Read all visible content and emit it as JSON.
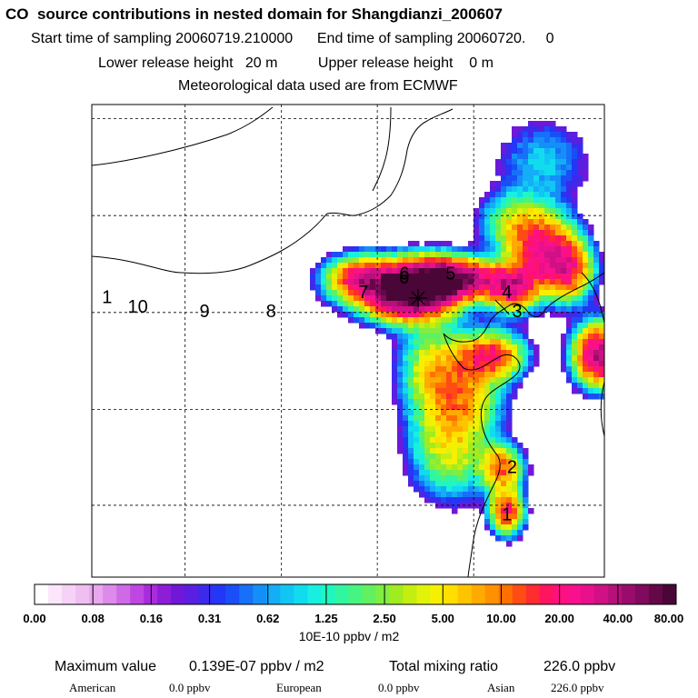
{
  "chart_data": {
    "type": "heatmap",
    "title": "CO  source contributions in nested domain for Shangdianzi_200607",
    "subtitle_lines": [
      {
        "left": "Start time of sampling 20060719.210000",
        "right": "End time of sampling 20060720.     0"
      },
      {
        "left": "Lower release height   20 m",
        "right": "Upper release height    0 m"
      },
      {
        "left": "Meteorological data used are from ECMWF",
        "right": ""
      }
    ],
    "colorbar": {
      "tick_labels": [
        "0.00",
        "0.08",
        "0.16",
        "0.31",
        "0.62",
        "1.25",
        "2.50",
        "5.00",
        "10.00",
        "20.00",
        "40.00",
        "80.00"
      ],
      "units": "10E-10 ppbv / m2",
      "colors": [
        "#ffffff",
        "#fbe6fb",
        "#f6d2f6",
        "#f0bff2",
        "#e9a7ee",
        "#dd8aea",
        "#cf6ae6",
        "#bf46e2",
        "#a92bdc",
        "#8e1dd8",
        "#7018d8",
        "#5a1fe0",
        "#3c2aec",
        "#2436f6",
        "#1a4ff8",
        "#1770f8",
        "#158ff8",
        "#14aef6",
        "#12c6f4",
        "#10dcee",
        "#18efe0",
        "#20f6c0",
        "#30f6a0",
        "#48f480",
        "#60f060",
        "#80ee40",
        "#a0ec20",
        "#c4ee10",
        "#e2f208",
        "#f6f000",
        "#ffde00",
        "#ffc400",
        "#ffaa00",
        "#ff9000",
        "#ff7000",
        "#ff4c14",
        "#ff2c30",
        "#ff1460",
        "#ff1080",
        "#f8108c",
        "#e8108c",
        "#d01084",
        "#b6107a",
        "#9a0c6c",
        "#800a5c",
        "#640848",
        "#4a0636"
      ]
    },
    "receptor_label": "6",
    "contour_labels": [
      "1",
      "10",
      "9",
      "8",
      "7",
      "6",
      "5",
      "4",
      "3",
      "2",
      "1"
    ],
    "statistics": {
      "maximum_label": "Maximum value",
      "maximum_value": "0.139E-07 ppbv / m2",
      "total_label": "Total mixing ratio",
      "total_value": "226.0 ppbv",
      "regions": [
        {
          "name": "American",
          "value": "0.0 ppbv"
        },
        {
          "name": "European",
          "value": "0.0 ppbv"
        },
        {
          "name": "Asian",
          "value": "226.0 ppbv"
        }
      ]
    },
    "plumes": [
      {
        "cx": 0.62,
        "cy": 0.4,
        "sx": 0.055,
        "sy": 0.035,
        "amp": 1.0
      },
      {
        "cx": 0.67,
        "cy": 0.37,
        "sx": 0.05,
        "sy": 0.03,
        "amp": 0.75
      },
      {
        "cx": 0.74,
        "cy": 0.37,
        "sx": 0.055,
        "sy": 0.025,
        "amp": 0.45
      },
      {
        "cx": 0.53,
        "cy": 0.37,
        "sx": 0.045,
        "sy": 0.03,
        "amp": 0.55
      },
      {
        "cx": 0.82,
        "cy": 0.39,
        "sx": 0.03,
        "sy": 0.03,
        "amp": 0.55
      },
      {
        "cx": 0.88,
        "cy": 0.31,
        "sx": 0.04,
        "sy": 0.05,
        "amp": 0.55
      },
      {
        "cx": 0.93,
        "cy": 0.35,
        "sx": 0.03,
        "sy": 0.04,
        "amp": 0.45
      },
      {
        "cx": 0.99,
        "cy": 0.53,
        "sx": 0.03,
        "sy": 0.04,
        "amp": 0.75
      },
      {
        "cx": 0.78,
        "cy": 0.53,
        "sx": 0.04,
        "sy": 0.03,
        "amp": 0.45
      },
      {
        "cx": 0.72,
        "cy": 0.6,
        "sx": 0.05,
        "sy": 0.06,
        "amp": 0.3
      },
      {
        "cx": 0.7,
        "cy": 0.72,
        "sx": 0.05,
        "sy": 0.07,
        "amp": 0.25
      },
      {
        "cx": 0.8,
        "cy": 0.77,
        "sx": 0.025,
        "sy": 0.03,
        "amp": 0.4
      },
      {
        "cx": 0.81,
        "cy": 0.86,
        "sx": 0.02,
        "sy": 0.03,
        "amp": 0.5
      },
      {
        "cx": 0.82,
        "cy": 0.25,
        "sx": 0.04,
        "sy": 0.04,
        "amp": 0.2
      },
      {
        "cx": 0.88,
        "cy": 0.12,
        "sx": 0.06,
        "sy": 0.06,
        "amp": 0.1
      },
      {
        "cx": 0.66,
        "cy": 0.55,
        "sx": 0.04,
        "sy": 0.06,
        "amp": 0.18
      }
    ]
  }
}
